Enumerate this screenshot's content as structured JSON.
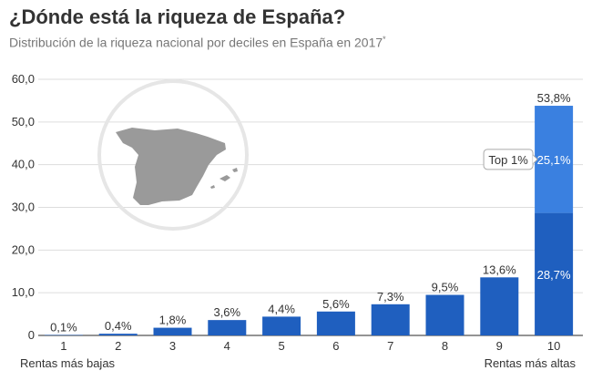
{
  "header": {
    "title": "¿Dónde está la riqueza de España?",
    "subtitle": "Distribución de la riqueza nacional por deciles en España en 2017",
    "subtitle_mark": "*"
  },
  "colors": {
    "bar": "#1f5fbf",
    "top_segment": "#3a80e0",
    "grid": "#dddddd",
    "map": "#9a9a9a",
    "circle": "#e8e8e8"
  },
  "icons": {
    "map": "spain-map-icon"
  },
  "chart_data": {
    "type": "bar",
    "categories": [
      "1",
      "2",
      "3",
      "4",
      "5",
      "6",
      "7",
      "8",
      "9",
      "10"
    ],
    "values": [
      0.1,
      0.4,
      1.8,
      3.6,
      4.4,
      5.6,
      7.3,
      9.5,
      13.6,
      53.8
    ],
    "value_labels": [
      "0,1%",
      "0,4%",
      "1,8%",
      "3,6%",
      "4,4%",
      "5,6%",
      "7,3%",
      "9,5%",
      "13,6%",
      "53,8%"
    ],
    "ylim": [
      0,
      60
    ],
    "yticks": [
      "0",
      "10,0",
      "20,0",
      "30,0",
      "40,0",
      "50,0",
      "60,0"
    ],
    "ytick_values": [
      0,
      10,
      20,
      30,
      40,
      50,
      60
    ],
    "grid": true,
    "x_left_note": "Rentas más bajas",
    "x_right_note": "Rentas más altas",
    "last_bar_breakdown": [
      {
        "label": "",
        "value": 28.7,
        "value_label": "28,7%"
      },
      {
        "label": "Top 1%",
        "value": 25.1,
        "value_label": "25,1%"
      }
    ]
  }
}
